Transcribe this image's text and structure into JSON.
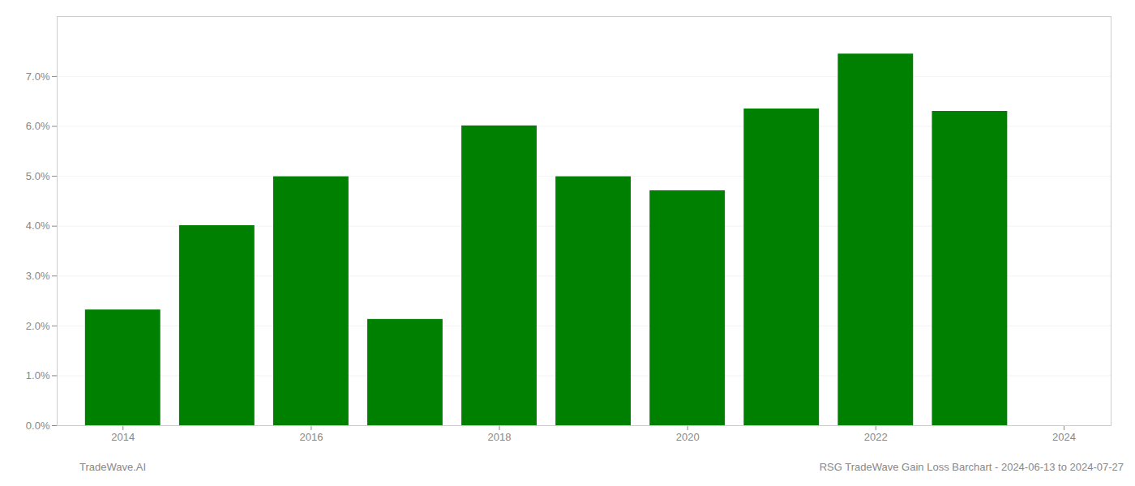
{
  "chart_data": {
    "type": "bar",
    "x": [
      2014,
      2015,
      2016,
      2017,
      2018,
      2019,
      2020,
      2021,
      2022,
      2023
    ],
    "values": [
      0.0232,
      0.0401,
      0.0499,
      0.0213,
      0.0601,
      0.0499,
      0.0471,
      0.0635,
      0.0745,
      0.063
    ],
    "color": "#008000",
    "xlim": [
      2013.3,
      2024.5
    ],
    "xticks": [
      2014,
      2016,
      2018,
      2020,
      2022,
      2024
    ],
    "ylim": [
      0,
      0.082
    ],
    "yticks": [
      {
        "value": 0.0,
        "label": "0.0%"
      },
      {
        "value": 0.01,
        "label": "1.0%"
      },
      {
        "value": 0.02,
        "label": "2.0%"
      },
      {
        "value": 0.03,
        "label": "3.0%"
      },
      {
        "value": 0.04,
        "label": "4.0%"
      },
      {
        "value": 0.05,
        "label": "5.0%"
      },
      {
        "value": 0.06,
        "label": "6.0%"
      },
      {
        "value": 0.07,
        "label": "7.0%"
      }
    ],
    "grid": true,
    "annotations": [
      "TradeWave.AI",
      "RSG TradeWave Gain Loss Barchart - 2024-06-13 to 2024-07-27"
    ]
  }
}
